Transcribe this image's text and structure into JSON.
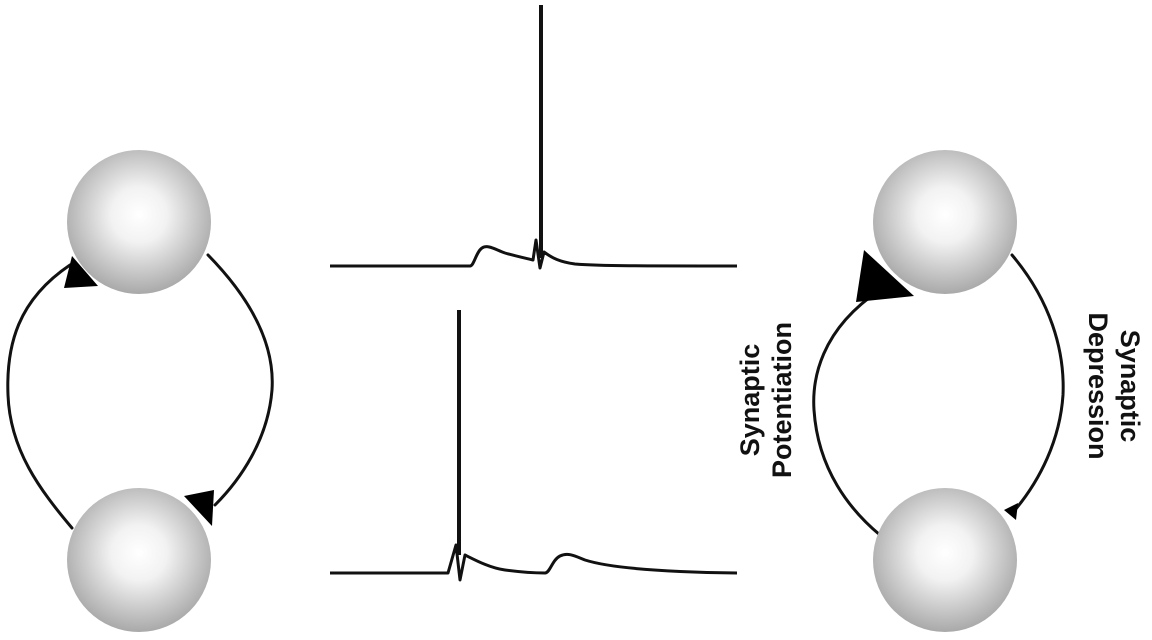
{
  "labels": {
    "potentiation_line1": "Synaptic",
    "potentiation_line2": "Potentiation",
    "depression_line1": "Synaptic",
    "depression_line2": "Depression"
  },
  "colors": {
    "neuron_center": "#ffffff",
    "neuron_edge": "#a9a9a9",
    "line": "#111111",
    "synapse": "#000000"
  }
}
